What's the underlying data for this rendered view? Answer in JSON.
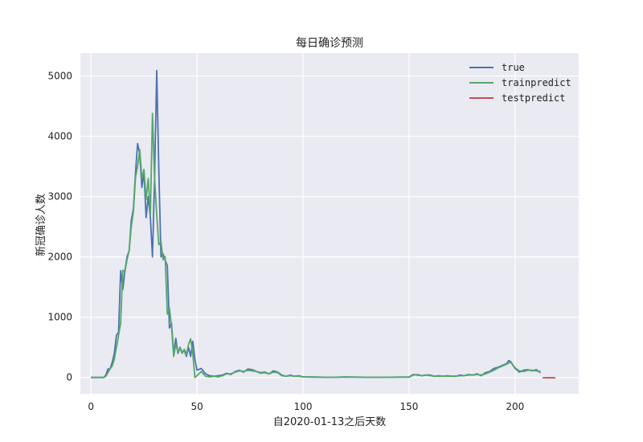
{
  "chart_data": {
    "type": "line",
    "title": "每日确诊预测",
    "xlabel": "自2020-01-13之后天数",
    "ylabel": "新冠确诊人数",
    "xlim": [
      -5,
      230
    ],
    "ylim": [
      -270,
      5380
    ],
    "xticks": [
      0,
      50,
      100,
      150,
      200
    ],
    "yticks": [
      0,
      1000,
      2000,
      3000,
      4000,
      5000
    ],
    "grid": true,
    "legend_position": "top-right",
    "series": [
      {
        "name": "true",
        "color": "#4c72b0",
        "points": [
          [
            0,
            0
          ],
          [
            3,
            0
          ],
          [
            6,
            0
          ],
          [
            7,
            40
          ],
          [
            8,
            140
          ],
          [
            9,
            140
          ],
          [
            10,
            250
          ],
          [
            11,
            400
          ],
          [
            12,
            700
          ],
          [
            13,
            750
          ],
          [
            14,
            1770
          ],
          [
            15,
            1460
          ],
          [
            16,
            1770
          ],
          [
            17,
            2000
          ],
          [
            18,
            2100
          ],
          [
            19,
            2600
          ],
          [
            20,
            2800
          ],
          [
            21,
            3400
          ],
          [
            22,
            3880
          ],
          [
            23,
            3700
          ],
          [
            24,
            3150
          ],
          [
            25,
            3400
          ],
          [
            26,
            2650
          ],
          [
            27,
            3000
          ],
          [
            28,
            2650
          ],
          [
            29,
            2000
          ],
          [
            30,
            3300
          ],
          [
            31,
            5090
          ],
          [
            32,
            3450
          ],
          [
            33,
            2000
          ],
          [
            34,
            2050
          ],
          [
            35,
            1950
          ],
          [
            36,
            1850
          ],
          [
            37,
            820
          ],
          [
            38,
            900
          ],
          [
            39,
            400
          ],
          [
            40,
            650
          ],
          [
            41,
            400
          ],
          [
            42,
            500
          ],
          [
            43,
            410
          ],
          [
            44,
            450
          ],
          [
            45,
            350
          ],
          [
            46,
            500
          ],
          [
            47,
            350
          ],
          [
            48,
            600
          ],
          [
            49,
            300
          ],
          [
            50,
            120
          ],
          [
            52,
            150
          ],
          [
            54,
            60
          ],
          [
            56,
            30
          ],
          [
            58,
            20
          ],
          [
            60,
            30
          ],
          [
            62,
            40
          ],
          [
            64,
            70
          ],
          [
            66,
            50
          ],
          [
            68,
            100
          ],
          [
            70,
            120
          ],
          [
            72,
            90
          ],
          [
            74,
            140
          ],
          [
            76,
            130
          ],
          [
            78,
            100
          ],
          [
            80,
            80
          ],
          [
            82,
            90
          ],
          [
            84,
            60
          ],
          [
            86,
            110
          ],
          [
            88,
            90
          ],
          [
            90,
            40
          ],
          [
            92,
            20
          ],
          [
            94,
            40
          ],
          [
            96,
            20
          ],
          [
            98,
            30
          ],
          [
            100,
            10
          ],
          [
            105,
            10
          ],
          [
            110,
            5
          ],
          [
            115,
            5
          ],
          [
            120,
            10
          ],
          [
            130,
            5
          ],
          [
            140,
            5
          ],
          [
            150,
            10
          ],
          [
            152,
            50
          ],
          [
            154,
            40
          ],
          [
            156,
            30
          ],
          [
            158,
            40
          ],
          [
            160,
            40
          ],
          [
            162,
            20
          ],
          [
            164,
            30
          ],
          [
            166,
            20
          ],
          [
            168,
            30
          ],
          [
            170,
            20
          ],
          [
            172,
            20
          ],
          [
            174,
            40
          ],
          [
            176,
            30
          ],
          [
            178,
            50
          ],
          [
            180,
            40
          ],
          [
            182,
            60
          ],
          [
            184,
            30
          ],
          [
            186,
            80
          ],
          [
            188,
            100
          ],
          [
            190,
            150
          ],
          [
            192,
            170
          ],
          [
            194,
            200
          ],
          [
            196,
            230
          ],
          [
            197,
            280
          ],
          [
            198,
            260
          ],
          [
            199,
            200
          ],
          [
            200,
            150
          ],
          [
            202,
            90
          ],
          [
            204,
            120
          ],
          [
            206,
            130
          ],
          [
            208,
            110
          ],
          [
            210,
            130
          ],
          [
            212,
            80
          ]
        ]
      },
      {
        "name": "trainpredict",
        "color": "#55a868",
        "points": [
          [
            0,
            0
          ],
          [
            3,
            0
          ],
          [
            6,
            0
          ],
          [
            7,
            20
          ],
          [
            8,
            80
          ],
          [
            9,
            140
          ],
          [
            10,
            190
          ],
          [
            11,
            300
          ],
          [
            12,
            500
          ],
          [
            13,
            700
          ],
          [
            14,
            900
          ],
          [
            15,
            1780
          ],
          [
            16,
            1750
          ],
          [
            17,
            1950
          ],
          [
            18,
            2100
          ],
          [
            19,
            2500
          ],
          [
            20,
            2750
          ],
          [
            21,
            3320
          ],
          [
            22,
            3500
          ],
          [
            23,
            3780
          ],
          [
            24,
            3300
          ],
          [
            25,
            3450
          ],
          [
            26,
            2950
          ],
          [
            27,
            3300
          ],
          [
            28,
            2700
          ],
          [
            29,
            4380
          ],
          [
            30,
            3300
          ],
          [
            31,
            2700
          ],
          [
            32,
            2200
          ],
          [
            33,
            2250
          ],
          [
            34,
            1950
          ],
          [
            35,
            2000
          ],
          [
            36,
            1050
          ],
          [
            37,
            1150
          ],
          [
            38,
            850
          ],
          [
            39,
            350
          ],
          [
            40,
            550
          ],
          [
            41,
            420
          ],
          [
            42,
            480
          ],
          [
            43,
            400
          ],
          [
            44,
            470
          ],
          [
            45,
            380
          ],
          [
            46,
            550
          ],
          [
            47,
            640
          ],
          [
            48,
            400
          ],
          [
            49,
            0
          ],
          [
            50,
            30
          ],
          [
            52,
            100
          ],
          [
            54,
            20
          ],
          [
            56,
            10
          ],
          [
            58,
            20
          ],
          [
            60,
            10
          ],
          [
            62,
            30
          ],
          [
            64,
            60
          ],
          [
            66,
            60
          ],
          [
            68,
            90
          ],
          [
            70,
            110
          ],
          [
            72,
            100
          ],
          [
            74,
            120
          ],
          [
            76,
            110
          ],
          [
            78,
            100
          ],
          [
            80,
            70
          ],
          [
            82,
            80
          ],
          [
            84,
            60
          ],
          [
            86,
            90
          ],
          [
            88,
            80
          ],
          [
            90,
            30
          ],
          [
            92,
            20
          ],
          [
            94,
            30
          ],
          [
            96,
            20
          ],
          [
            98,
            20
          ],
          [
            100,
            10
          ],
          [
            105,
            5
          ],
          [
            110,
            5
          ],
          [
            115,
            5
          ],
          [
            120,
            5
          ],
          [
            130,
            5
          ],
          [
            140,
            5
          ],
          [
            150,
            5
          ],
          [
            152,
            40
          ],
          [
            154,
            50
          ],
          [
            156,
            30
          ],
          [
            158,
            40
          ],
          [
            160,
            30
          ],
          [
            162,
            20
          ],
          [
            164,
            20
          ],
          [
            166,
            20
          ],
          [
            168,
            20
          ],
          [
            170,
            20
          ],
          [
            172,
            20
          ],
          [
            174,
            30
          ],
          [
            176,
            30
          ],
          [
            178,
            40
          ],
          [
            180,
            40
          ],
          [
            182,
            50
          ],
          [
            184,
            40
          ],
          [
            186,
            60
          ],
          [
            188,
            90
          ],
          [
            190,
            120
          ],
          [
            192,
            160
          ],
          [
            194,
            190
          ],
          [
            196,
            220
          ],
          [
            197,
            240
          ],
          [
            198,
            250
          ],
          [
            199,
            210
          ],
          [
            200,
            160
          ],
          [
            202,
            110
          ],
          [
            204,
            100
          ],
          [
            206,
            120
          ],
          [
            208,
            120
          ],
          [
            210,
            110
          ],
          [
            212,
            100
          ]
        ]
      },
      {
        "name": "testpredict",
        "color": "#c44e52",
        "points": [
          [
            213,
            -5
          ],
          [
            214,
            -5
          ],
          [
            216,
            -3
          ],
          [
            218,
            -5
          ],
          [
            219,
            -5
          ]
        ]
      }
    ]
  }
}
